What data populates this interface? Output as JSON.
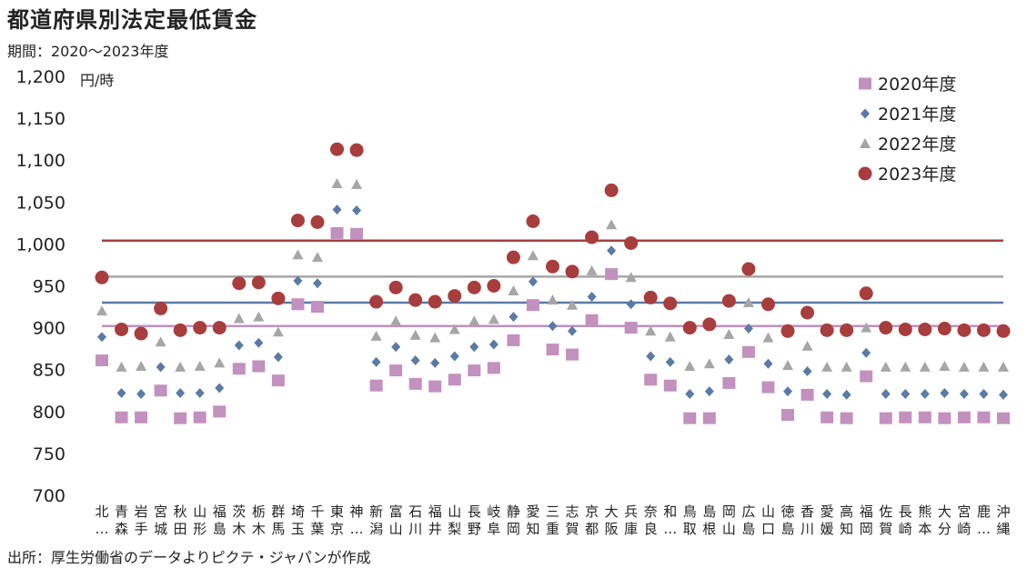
{
  "title": "都道府県別法定最低賃金",
  "subtitle": "期間：2020～2023年度",
  "unit": "円/時",
  "source": "出所：厚生労働省のデータよりピクテ・ジャパンが作成",
  "chart_data": {
    "type": "scatter",
    "ylim": [
      700,
      1200
    ],
    "yticks": [
      "1,200",
      "1,150",
      "1,100",
      "1,050",
      "1,000",
      "950",
      "900",
      "850",
      "800",
      "750",
      "700"
    ],
    "ytick_values": [
      1200,
      1150,
      1100,
      1050,
      1000,
      950,
      900,
      850,
      800,
      750,
      700
    ],
    "categories": [
      [
        "北",
        "…"
      ],
      [
        "青",
        "森"
      ],
      [
        "岩",
        "手"
      ],
      [
        "宮",
        "城"
      ],
      [
        "秋",
        "田"
      ],
      [
        "山",
        "形"
      ],
      [
        "福",
        "島"
      ],
      [
        "茨",
        "木"
      ],
      [
        "栃",
        "木"
      ],
      [
        "群",
        "馬"
      ],
      [
        "埼",
        "玉"
      ],
      [
        "千",
        "葉"
      ],
      [
        "東",
        "京"
      ],
      [
        "神",
        "…"
      ],
      [
        "新",
        "潟"
      ],
      [
        "富",
        "山"
      ],
      [
        "石",
        "川"
      ],
      [
        "福",
        "井"
      ],
      [
        "山",
        "梨"
      ],
      [
        "長",
        "野"
      ],
      [
        "岐",
        "阜"
      ],
      [
        "静",
        "岡"
      ],
      [
        "愛",
        "知"
      ],
      [
        "三",
        "重"
      ],
      [
        "志",
        "賀"
      ],
      [
        "京",
        "都"
      ],
      [
        "大",
        "阪"
      ],
      [
        "兵",
        "庫"
      ],
      [
        "奈",
        "良"
      ],
      [
        "和",
        "…"
      ],
      [
        "鳥",
        "取"
      ],
      [
        "島",
        "根"
      ],
      [
        "岡",
        "山"
      ],
      [
        "広",
        "島"
      ],
      [
        "山",
        "口"
      ],
      [
        "徳",
        "島"
      ],
      [
        "香",
        "川"
      ],
      [
        "愛",
        "媛"
      ],
      [
        "高",
        "知"
      ],
      [
        "福",
        "岡"
      ],
      [
        "佐",
        "賀"
      ],
      [
        "長",
        "崎"
      ],
      [
        "熊",
        "本"
      ],
      [
        "大",
        "分"
      ],
      [
        "宮",
        "崎"
      ],
      [
        "鹿",
        "…"
      ],
      [
        "沖",
        "縄"
      ]
    ],
    "series": [
      {
        "name": "2020年度",
        "marker": "square",
        "color": "#c291bf",
        "avg": 902,
        "values": [
          861,
          793,
          793,
          825,
          792,
          793,
          800,
          851,
          854,
          837,
          928,
          925,
          1013,
          1012,
          831,
          849,
          833,
          830,
          838,
          849,
          852,
          885,
          927,
          874,
          868,
          909,
          964,
          900,
          838,
          831,
          792,
          792,
          834,
          871,
          829,
          796,
          820,
          793,
          792,
          842,
          792,
          793,
          793,
          792,
          793,
          793,
          792
        ]
      },
      {
        "name": "2021年度",
        "marker": "diamond",
        "color": "#5b7aa5",
        "avg": 930,
        "values": [
          889,
          822,
          821,
          853,
          822,
          822,
          828,
          879,
          882,
          865,
          956,
          953,
          1041,
          1040,
          859,
          877,
          861,
          858,
          866,
          877,
          880,
          913,
          955,
          902,
          896,
          937,
          992,
          928,
          866,
          859,
          821,
          824,
          862,
          899,
          857,
          824,
          848,
          821,
          820,
          870,
          821,
          821,
          821,
          822,
          821,
          821,
          820
        ]
      },
      {
        "name": "2022年度",
        "marker": "triangle",
        "color": "#a6a6a6",
        "avg": 961,
        "values": [
          920,
          853,
          854,
          883,
          853,
          854,
          858,
          911,
          913,
          895,
          987,
          984,
          1072,
          1071,
          890,
          908,
          891,
          888,
          898,
          908,
          910,
          944,
          986,
          933,
          927,
          968,
          1023,
          960,
          896,
          889,
          854,
          857,
          892,
          930,
          888,
          855,
          878,
          853,
          853,
          900,
          853,
          853,
          853,
          854,
          853,
          853,
          853
        ]
      },
      {
        "name": "2023年度",
        "marker": "circle",
        "color": "#a83d3d",
        "avg": 1004,
        "values": [
          960,
          898,
          893,
          923,
          897,
          900,
          900,
          953,
          954,
          935,
          1028,
          1026,
          1113,
          1112,
          931,
          948,
          933,
          931,
          938,
          948,
          950,
          984,
          1027,
          973,
          967,
          1008,
          1064,
          1001,
          936,
          929,
          900,
          904,
          932,
          970,
          928,
          896,
          918,
          897,
          897,
          941,
          900,
          898,
          898,
          899,
          897,
          897,
          896
        ]
      }
    ],
    "legend_position": "top-right",
    "grid": false
  }
}
